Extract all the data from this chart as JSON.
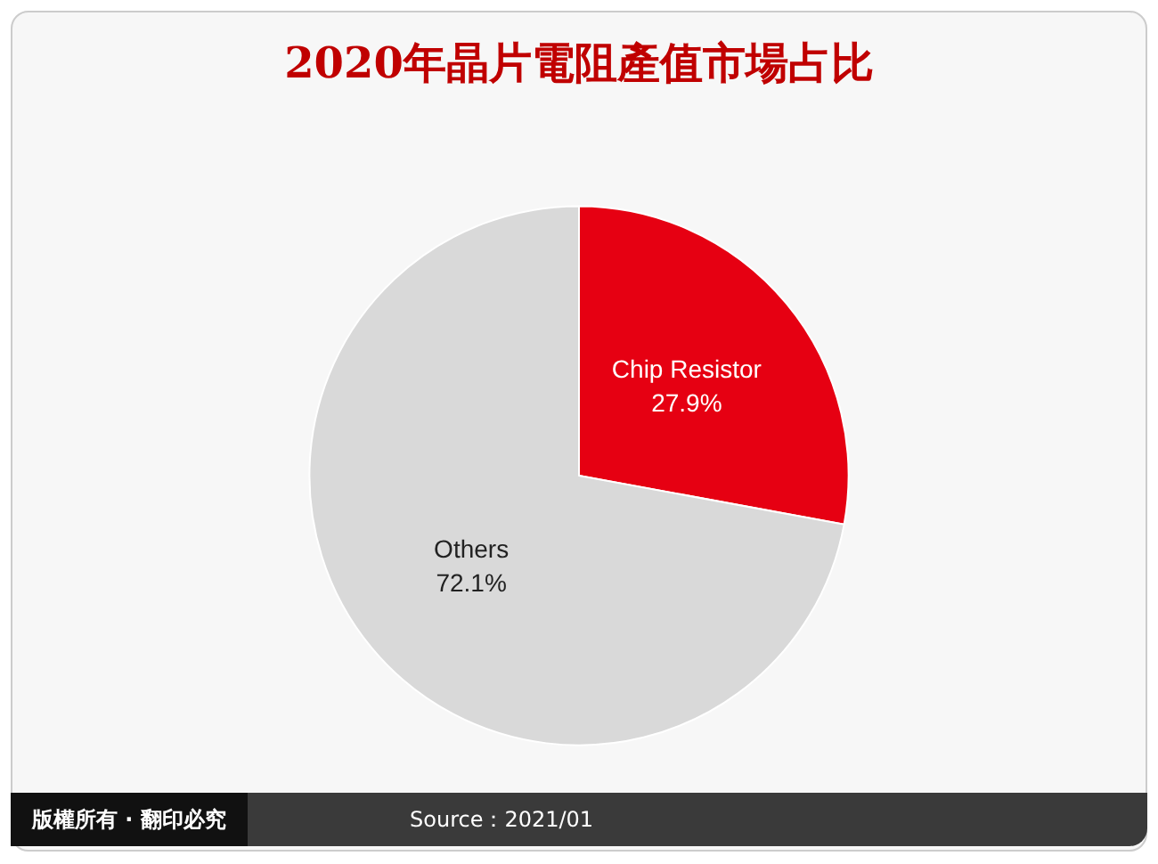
{
  "chart_data": {
    "type": "pie",
    "title": "2020年晶片電阻產值市場占比",
    "categories": [
      "Chip Resistor",
      "Others"
    ],
    "values": [
      27.9,
      72.1
    ],
    "colors": [
      "#e60012",
      "#d9d9d9"
    ],
    "value_labels": [
      "27.9%",
      "72.1%"
    ],
    "legend": false,
    "annotations": [
      "版權所有 · 翻印必究",
      "Source：2021/01"
    ]
  }
}
